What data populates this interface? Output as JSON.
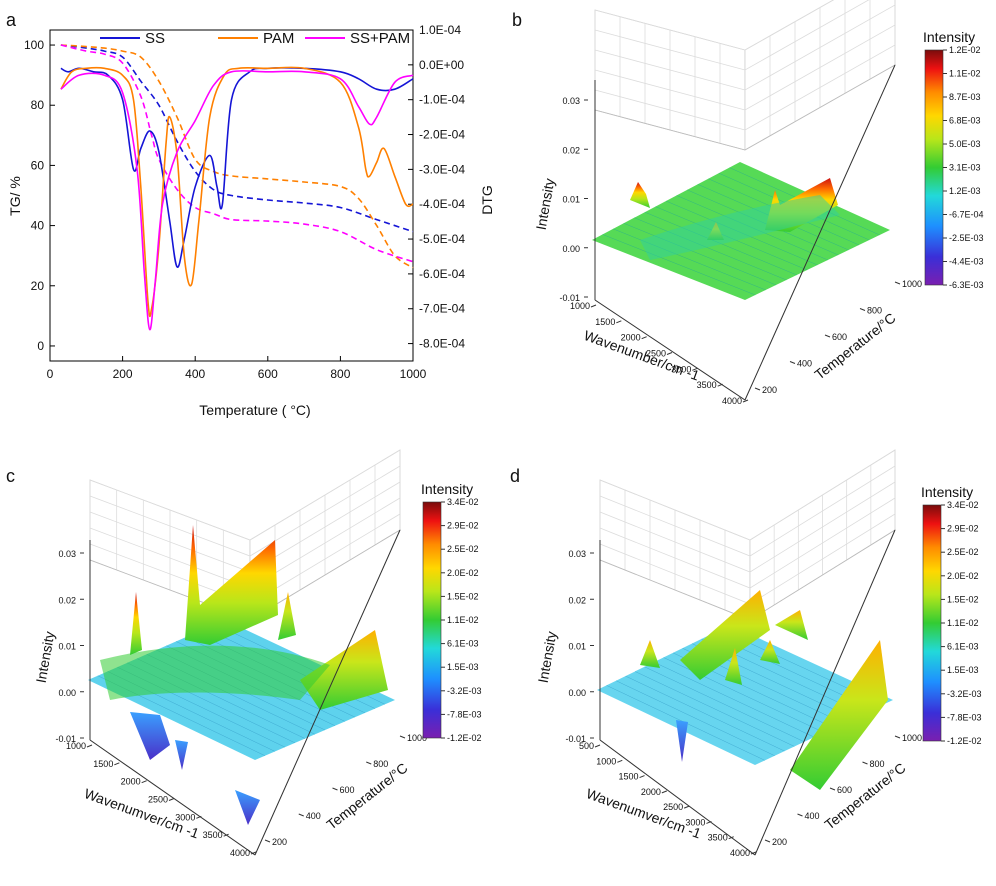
{
  "panels": {
    "a": {
      "letter": "a",
      "chart_data": {
        "type": "line",
        "title": "",
        "xlabel": "Temperature (  °C)",
        "ylabel_left": "TG/ %",
        "ylabel_right": "DTG",
        "xlim": [
          0,
          1000
        ],
        "ylim_left": [
          -5,
          105
        ],
        "ylim_right": [
          -0.00085,
          0.0001
        ],
        "x_ticks": [
          "0",
          "200",
          "400",
          "600",
          "800",
          "1000"
        ],
        "y_ticks_left": [
          "0",
          "20",
          "40",
          "60",
          "80",
          "100"
        ],
        "y_ticks_right": [
          "1.0E-04",
          "0.0E+00",
          "-1.0E-04",
          "-2.0E-04",
          "-3.0E-04",
          "-4.0E-04",
          "-5.0E-04",
          "-6.0E-04",
          "-7.0E-04",
          "-8.0E-04"
        ],
        "legend": [
          "SS",
          "PAM",
          "SS+PAM"
        ],
        "colors": {
          "SS": "#1515d6",
          "PAM": "#ff8000",
          "SS+PAM": "#ff00ff"
        },
        "series_tg": [
          {
            "name": "SS",
            "style": "dashed",
            "x": [
              30,
              100,
              150,
              200,
              250,
              300,
              350,
              400,
              450,
              500,
              600,
              700,
              800,
              900,
              1000
            ],
            "y": [
              100,
              99,
              98,
              96,
              88,
              80,
              68,
              58,
              52,
              50,
              48.5,
              47.5,
              46,
              42,
              38
            ]
          },
          {
            "name": "PAM",
            "style": "dashed",
            "x": [
              30,
              100,
              150,
              200,
              250,
              300,
              350,
              400,
              450,
              500,
              600,
              700,
              800,
              850,
              900,
              950,
              1000
            ],
            "y": [
              100,
              99.5,
              99,
              98,
              96,
              88,
              76,
              62,
              58,
              56.5,
              55.5,
              54.5,
              53,
              49,
              40,
              30,
              26
            ]
          },
          {
            "name": "SS+PAM",
            "style": "dashed",
            "x": [
              30,
              100,
              150,
              200,
              250,
              280,
              300,
              350,
              400,
              450,
              500,
              600,
              700,
              800,
              900,
              1000
            ],
            "y": [
              100,
              98,
              97,
              94,
              83,
              70,
              62,
              52,
              46,
              44,
              42,
              41.5,
              40.5,
              38,
              32,
              28
            ]
          }
        ],
        "series_dtg": [
          {
            "name": "SS",
            "style": "solid",
            "x": [
              30,
              50,
              80,
              120,
              160,
              200,
              230,
              250,
              275,
              300,
              330,
              350,
              370,
              400,
              440,
              460,
              475,
              500,
              550,
              600,
              700,
              800,
              850,
              900,
              950,
              1000
            ],
            "y": [
              -1e-05,
              -2e-05,
              -1e-05,
              -2e-05,
              -3e-05,
              -0.0001,
              -0.0003,
              -0.00024,
              -0.00019,
              -0.00025,
              -0.00045,
              -0.00058,
              -0.0005,
              -0.00035,
              -0.00026,
              -0.00035,
              -0.0004,
              -0.0001,
              -2e-05,
              -1e-05,
              -1e-05,
              -2e-05,
              -4e-05,
              -7e-05,
              -7e-05,
              -4e-05
            ]
          },
          {
            "name": "PAM",
            "style": "solid",
            "x": [
              30,
              60,
              100,
              150,
              200,
              230,
              250,
              270,
              280,
              300,
              320,
              330,
              350,
              370,
              390,
              410,
              440,
              480,
              520,
              600,
              700,
              800,
              850,
              870,
              880,
              900,
              920,
              950,
              980,
              1000
            ],
            "y": [
              -7e-05,
              -2e-05,
              -1e-05,
              -1e-05,
              -3e-05,
              -0.0001,
              -0.00035,
              -0.00068,
              -0.0007,
              -0.00052,
              -0.00022,
              -0.00015,
              -0.00026,
              -0.00055,
              -0.00063,
              -0.00045,
              -0.00015,
              -3e-05,
              -1e-05,
              -1e-05,
              -1e-05,
              -5e-05,
              -0.00018,
              -0.0003,
              -0.00032,
              -0.00028,
              -0.00024,
              -0.00032,
              -0.0004,
              -0.0004
            ]
          },
          {
            "name": "SS+PAM",
            "style": "solid",
            "x": [
              30,
              80,
              150,
              200,
              240,
              260,
              275,
              290,
              310,
              350,
              400,
              450,
              500,
              600,
              700,
              800,
              850,
              880,
              900,
              950,
              1000
            ],
            "y": [
              -7e-05,
              -3e-05,
              -3e-05,
              -8e-05,
              -0.0003,
              -0.0006,
              -0.00076,
              -0.00062,
              -0.0004,
              -0.00025,
              -0.00016,
              -6e-05,
              -2e-05,
              -2e-05,
              -2e-05,
              -4e-05,
              -0.00012,
              -0.00017,
              -0.00015,
              -5e-05,
              -3e-05
            ]
          }
        ]
      }
    },
    "b": {
      "letter": "b",
      "chart_data": {
        "type": "heatmap",
        "title": "",
        "zlabel": "Intensity",
        "xlabel": "Wavenumber/cm -1",
        "ylabel": "Temperature/°C",
        "x_ticks": [
          "1000",
          "1500",
          "2000",
          "2500",
          "3000",
          "3500",
          "4000"
        ],
        "y_ticks": [
          "200",
          "400",
          "600",
          "800",
          "1000"
        ],
        "z_ticks": [
          "-0.01",
          "0.00",
          "0.01",
          "0.02",
          "0.03"
        ],
        "colorbar_title": "Intensity",
        "colorbar_ticks": [
          "1.2E-02",
          "1.1E-02",
          "8.7E-03",
          "6.8E-03",
          "5.0E-03",
          "3.1E-03",
          "1.2E-03",
          "-6.7E-04",
          "-2.5E-03",
          "-4.4E-03",
          "-6.3E-03"
        ],
        "peaks": [
          {
            "wavenumber": 1100,
            "temperature": 900,
            "intensity": 0.009
          },
          {
            "wavenumber": 2350,
            "temperature": 500,
            "intensity": 0.004
          },
          {
            "wavenumber": 2950,
            "temperature": 800,
            "intensity": 0.012
          }
        ]
      }
    },
    "c": {
      "letter": "c",
      "chart_data": {
        "type": "heatmap",
        "title": "",
        "zlabel": "Intensity",
        "xlabel": "Wavenumver/cm -1",
        "ylabel": "Temperature/°C",
        "x_ticks": [
          "1000",
          "1500",
          "2000",
          "2500",
          "3000",
          "3500",
          "4000"
        ],
        "y_ticks": [
          "200",
          "400",
          "600",
          "800",
          "1000"
        ],
        "z_ticks": [
          "-0.01",
          "0.00",
          "0.01",
          "0.02",
          "0.03"
        ],
        "colorbar_title": "Intensity",
        "colorbar_ticks": [
          "3.4E-02",
          "2.9E-02",
          "2.5E-02",
          "2.0E-02",
          "1.5E-02",
          "1.1E-02",
          "6.1E-03",
          "1.5E-03",
          "-3.2E-03",
          "-7.8E-03",
          "-1.2E-02"
        ],
        "peaks": [
          {
            "wavenumber": 700,
            "temperature": 800,
            "intensity": 0.019
          },
          {
            "wavenumber": 1400,
            "temperature": 800,
            "intensity": 0.034
          },
          {
            "wavenumber": 2300,
            "temperature": 700,
            "intensity": 0.024
          },
          {
            "wavenumber": 2900,
            "temperature": 700,
            "intensity": 0.013
          },
          {
            "wavenumber": 1300,
            "temperature": 200,
            "intensity": -0.011
          }
        ]
      }
    },
    "d": {
      "letter": "d",
      "chart_data": {
        "type": "heatmap",
        "title": "",
        "zlabel": "Intensity",
        "xlabel": "Wavenumver/cm -1",
        "ylabel": "Temperature/°C",
        "x_ticks": [
          "500",
          "1000",
          "1500",
          "2000",
          "2500",
          "3000",
          "3500",
          "4000"
        ],
        "y_ticks": [
          "200",
          "400",
          "600",
          "800",
          "1000"
        ],
        "z_ticks": [
          "-0.01",
          "0.00",
          "0.01",
          "0.02",
          "0.03"
        ],
        "colorbar_title": "Intensity",
        "colorbar_ticks": [
          "3.4E-02",
          "2.9E-02",
          "2.5E-02",
          "2.0E-02",
          "1.5E-02",
          "1.1E-02",
          "6.1E-03",
          "1.5E-03",
          "-3.2E-03",
          "-7.8E-03",
          "-1.2E-02"
        ],
        "peaks": [
          {
            "wavenumber": 1500,
            "temperature": 800,
            "intensity": 0.013
          },
          {
            "wavenumber": 2300,
            "temperature": 700,
            "intensity": 0.019
          },
          {
            "wavenumber": 2900,
            "temperature": 700,
            "intensity": 0.013
          },
          {
            "wavenumber": 3000,
            "temperature": 500,
            "intensity": 0.013
          }
        ]
      }
    }
  }
}
